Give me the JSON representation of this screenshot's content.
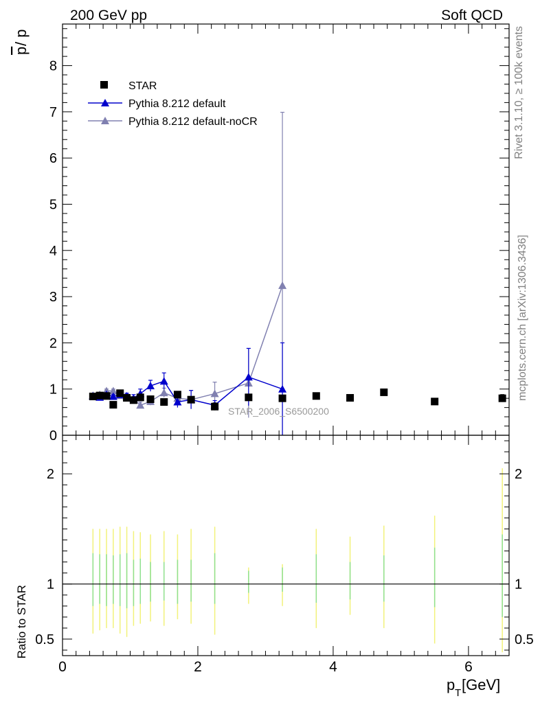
{
  "header": {
    "left_title": "200 GeV pp",
    "right_title": "Soft QCD"
  },
  "side_labels": {
    "rivet": "Rivet 3.1.10, ≥ 100k events",
    "mcplots": "mcplots.cern.ch [arXiv:1306.3436]"
  },
  "watermark": "STAR_2006_S6500200",
  "chart_data": [
    {
      "type": "scatter",
      "panel": "main",
      "ylabel": "p̄ / p",
      "ylabel_bar": "p",
      "ylabel_rest": " / p",
      "xlim": [
        0,
        6.6
      ],
      "ylim": [
        0,
        8.9
      ],
      "yticks": [
        0,
        1,
        2,
        3,
        4,
        5,
        6,
        7,
        8
      ],
      "ytick_labels": [
        "0",
        "1",
        "2",
        "3",
        "4",
        "5",
        "6",
        "7",
        "8"
      ],
      "legend_position": "top-left",
      "series": [
        {
          "name": "STAR",
          "marker": "square",
          "color": "#000000",
          "line": false,
          "x": [
            0.45,
            0.55,
            0.65,
            0.75,
            0.85,
            0.95,
            1.05,
            1.15,
            1.3,
            1.5,
            1.7,
            1.9,
            2.25,
            2.75,
            3.25,
            3.75,
            4.25,
            4.75,
            5.5,
            6.5
          ],
          "y": [
            0.84,
            0.86,
            0.85,
            0.66,
            0.91,
            0.81,
            0.76,
            0.82,
            0.78,
            0.72,
            0.88,
            0.77,
            0.62,
            0.82,
            0.8,
            0.85,
            0.81,
            0.93,
            0.73,
            0.8
          ],
          "err": [
            0.03,
            0.03,
            0.03,
            0.03,
            0.04,
            0.04,
            0.04,
            0.04,
            0.04,
            0.04,
            0.04,
            0.05,
            0.08,
            0.05,
            0.05,
            0.06,
            0.06,
            0.07,
            0.07,
            0.08
          ]
        },
        {
          "name": "Pythia 8.212 default",
          "marker": "triangle",
          "color": "#0000cc",
          "line": true,
          "x": [
            0.45,
            0.55,
            0.65,
            0.75,
            0.85,
            0.95,
            1.05,
            1.15,
            1.3,
            1.5,
            1.7,
            1.9,
            2.25,
            2.75,
            3.25
          ],
          "y": [
            0.85,
            0.82,
            0.88,
            0.84,
            0.88,
            0.85,
            0.8,
            0.9,
            1.07,
            1.17,
            0.72,
            0.77,
            0.65,
            1.26,
            1.0
          ],
          "err": [
            0.03,
            0.03,
            0.04,
            0.04,
            0.05,
            0.06,
            0.08,
            0.1,
            0.12,
            0.18,
            0.12,
            0.2,
            0.1,
            0.62,
            1.0
          ]
        },
        {
          "name": "Pythia 8.212 default-noCR",
          "marker": "triangle",
          "color": "#8080b0",
          "line": true,
          "x": [
            0.45,
            0.55,
            0.65,
            0.75,
            0.85,
            0.95,
            1.05,
            1.15,
            1.3,
            1.5,
            1.7,
            1.9,
            2.25,
            2.75,
            3.25
          ],
          "y": [
            0.86,
            0.88,
            0.96,
            0.96,
            0.86,
            0.83,
            0.78,
            0.65,
            0.73,
            0.92,
            0.8,
            0.77,
            0.9,
            1.13,
            3.24
          ],
          "err": [
            0.03,
            0.03,
            0.04,
            0.04,
            0.05,
            0.06,
            0.06,
            0.07,
            0.08,
            0.1,
            0.15,
            0.2,
            0.25,
            0.75,
            3.75
          ]
        }
      ]
    },
    {
      "type": "scatter",
      "panel": "ratio",
      "ylabel": "Ratio to STAR",
      "xlabel_main": "p",
      "xlabel_sub": "T",
      "xlabel_rest": " [GeV]",
      "xlim": [
        0,
        6.6
      ],
      "xticks": [
        0,
        2,
        4,
        6
      ],
      "xtick_labels": [
        "0",
        "2",
        "4",
        "6"
      ],
      "ylim": [
        0.35,
        2.35
      ],
      "yticks": [
        0.5,
        1,
        2
      ],
      "ytick_labels": [
        "0.5",
        "1",
        "2"
      ],
      "reference_line": 1,
      "uncertainty_bands": {
        "stat_color": "#8fe08f",
        "total_color": "#f2f27a",
        "x": [
          0.45,
          0.55,
          0.65,
          0.75,
          0.85,
          0.95,
          1.05,
          1.15,
          1.3,
          1.5,
          1.7,
          1.9,
          2.25,
          2.75,
          3.25,
          3.75,
          4.25,
          4.75,
          5.5,
          6.5
        ],
        "stat_low": [
          0.8,
          0.82,
          0.8,
          0.82,
          0.8,
          0.78,
          0.8,
          0.82,
          0.84,
          0.85,
          0.82,
          0.84,
          0.82,
          0.92,
          0.93,
          0.83,
          0.86,
          0.84,
          0.79,
          0.7
        ],
        "stat_high": [
          1.28,
          1.27,
          1.27,
          1.26,
          1.27,
          1.28,
          1.22,
          1.23,
          1.2,
          1.2,
          1.22,
          1.22,
          1.28,
          1.12,
          1.15,
          1.27,
          1.2,
          1.26,
          1.33,
          1.45
        ],
        "total_low": [
          0.55,
          0.58,
          0.6,
          0.6,
          0.55,
          0.52,
          0.62,
          0.64,
          0.66,
          0.62,
          0.68,
          0.64,
          0.54,
          0.82,
          0.8,
          0.6,
          0.72,
          0.6,
          0.46,
          0.38
        ],
        "total_high": [
          1.5,
          1.5,
          1.5,
          1.5,
          1.52,
          1.52,
          1.48,
          1.47,
          1.45,
          1.48,
          1.45,
          1.5,
          1.52,
          1.15,
          1.18,
          1.5,
          1.43,
          1.53,
          1.62,
          2.05
        ]
      }
    }
  ]
}
